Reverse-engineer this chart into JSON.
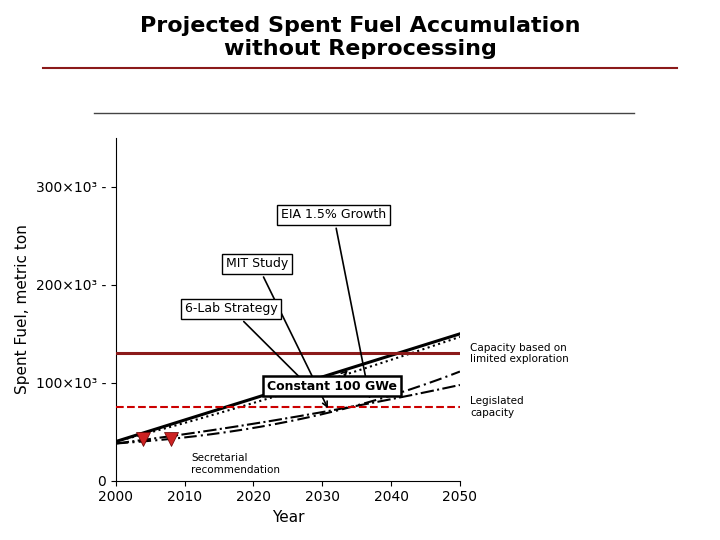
{
  "title": "Projected Spent Fuel Accumulation\nwithout Reprocessing",
  "xlabel": "Year",
  "ylabel": "Spent Fuel, metric ton",
  "xlim": [
    2000,
    2050
  ],
  "ylim": [
    0,
    350000
  ],
  "ytick_vals": [
    0,
    100000,
    200000,
    300000
  ],
  "ytick_labels": [
    "0",
    "100×10³ -",
    "200×10³ -",
    "300×10³ -"
  ],
  "xticks": [
    2000,
    2010,
    2020,
    2030,
    2040,
    2050
  ],
  "capacity_limited": 130000,
  "capacity_legislated": 75000,
  "secretarial_years": [
    2004,
    2008
  ],
  "secretarial_value": 43000,
  "bg_color": "#ffffff",
  "capacity_line_color": "#8b1a1a",
  "legislated_line_color": "#cc0000",
  "title_fontsize": 16,
  "label_fontsize": 10,
  "tick_fontsize": 10,
  "hr_line_color": "#8b1a1a"
}
